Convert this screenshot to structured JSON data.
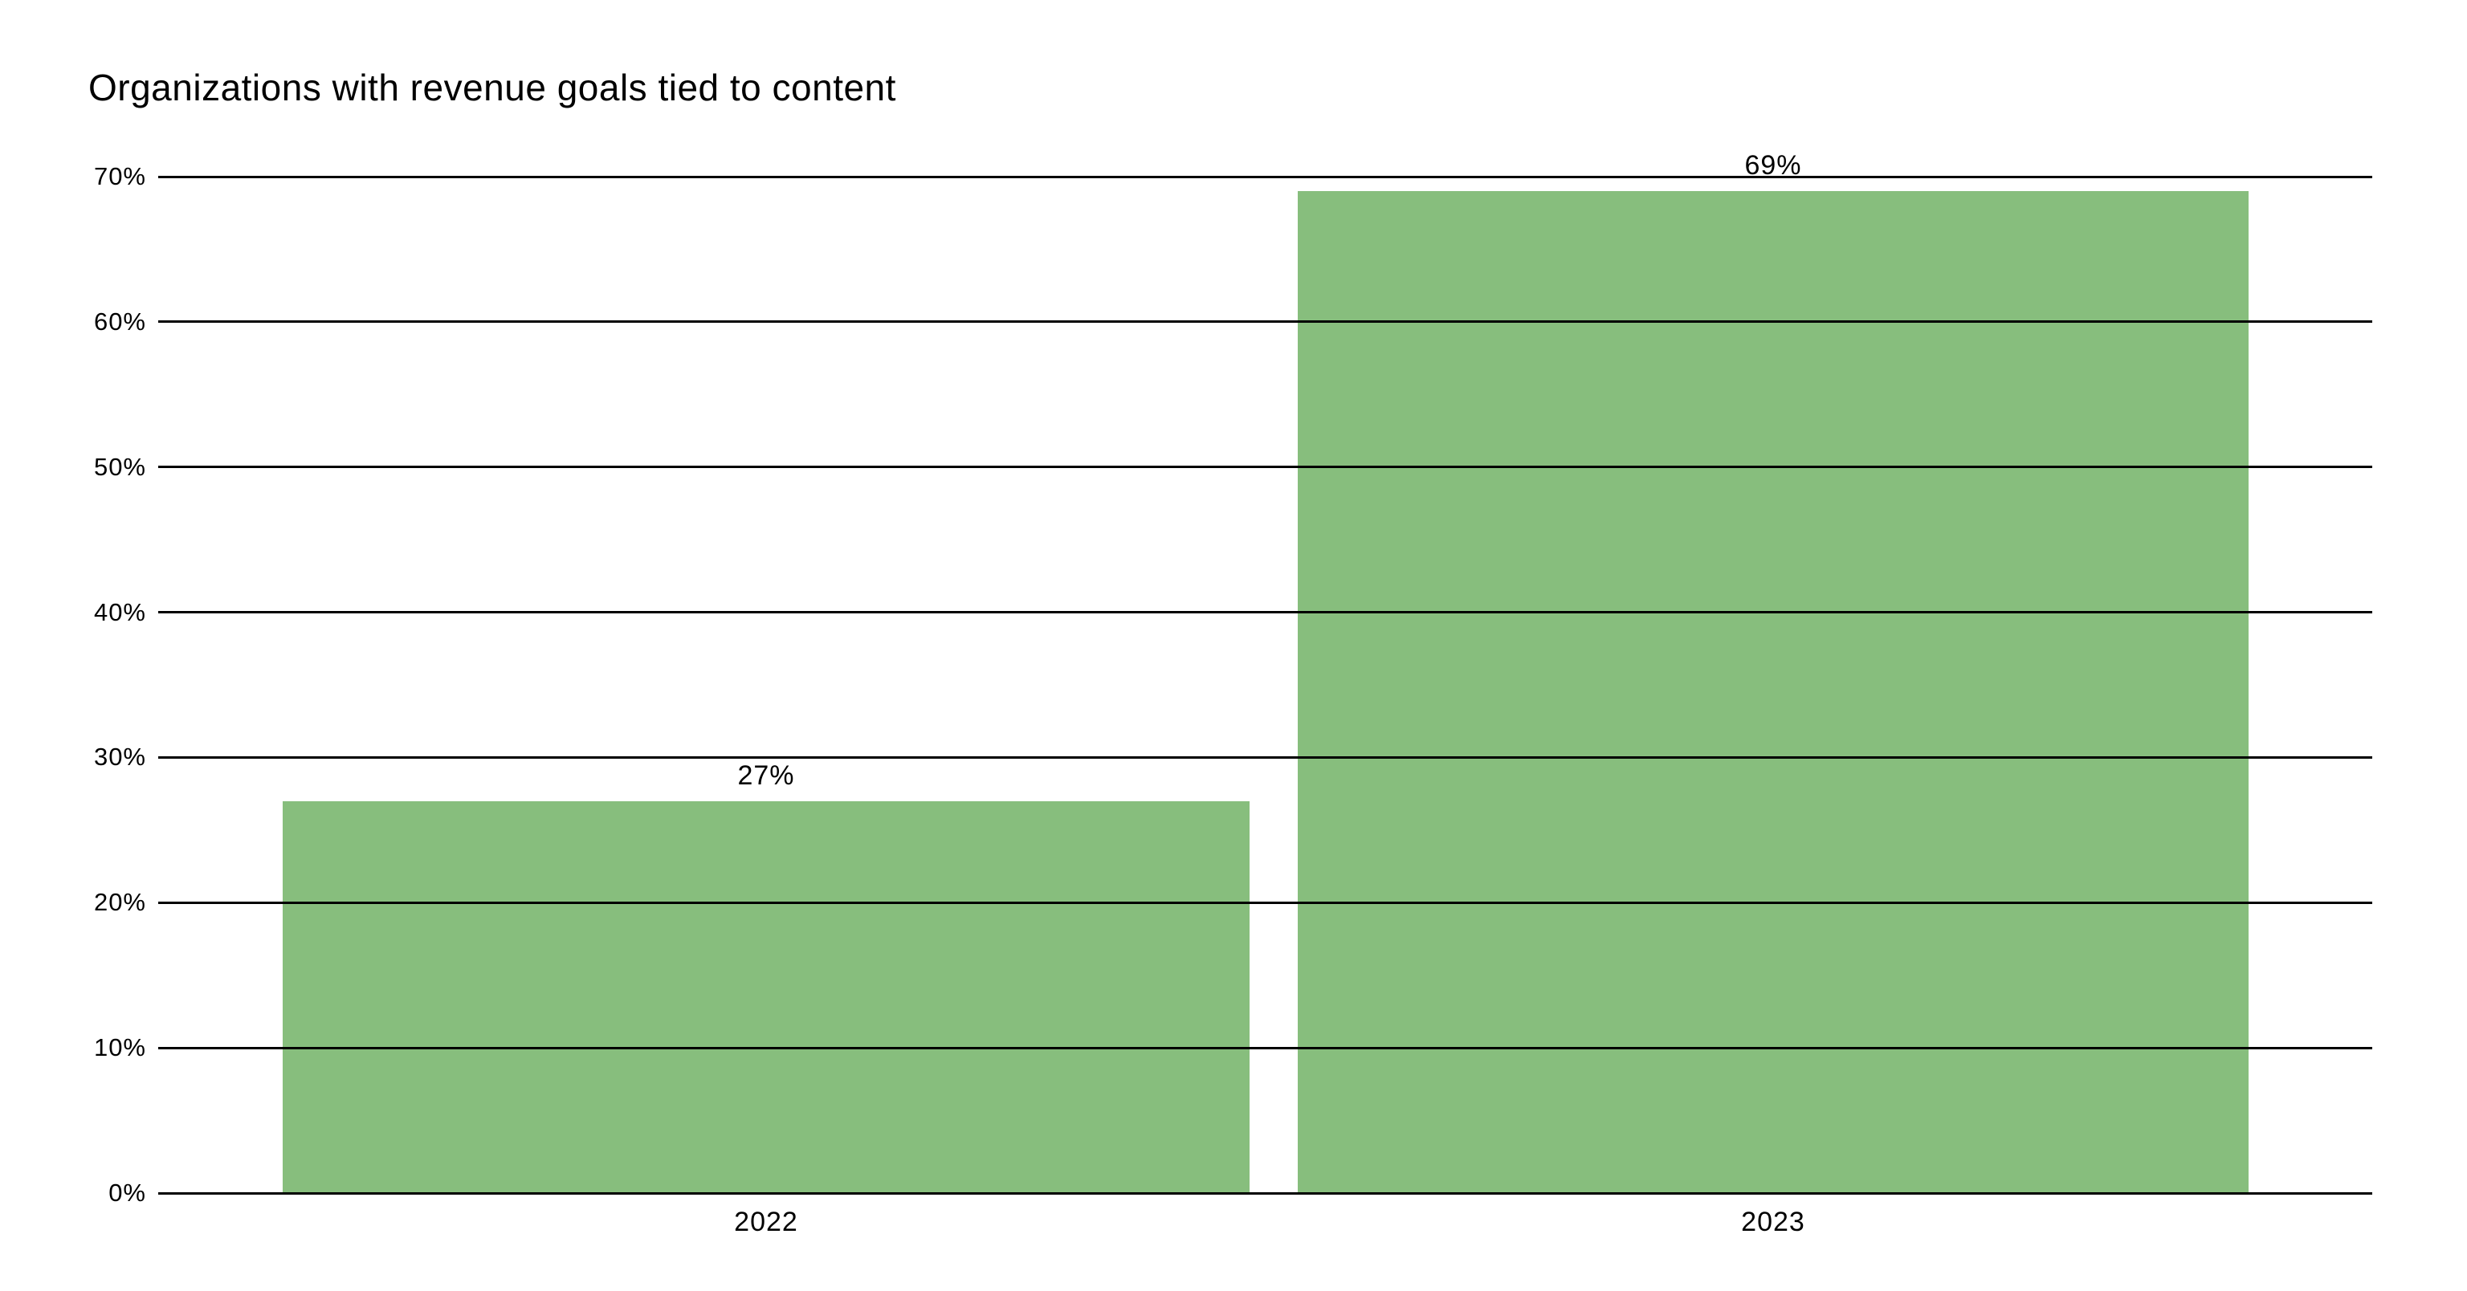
{
  "chart_data": {
    "type": "bar",
    "title": "Organizations with revenue goals tied to content",
    "categories": [
      "2022",
      "2023"
    ],
    "values": [
      27,
      69
    ],
    "value_labels": [
      "27%",
      "69%"
    ],
    "series": [
      {
        "name": "Organizations with revenue goals tied to content",
        "values": [
          27,
          69
        ]
      }
    ],
    "xlabel": "",
    "ylabel": "",
    "ylim": [
      0,
      70
    ],
    "yticks": [
      0,
      10,
      20,
      30,
      40,
      50,
      60,
      70
    ],
    "ytick_labels": [
      "0%",
      "10%",
      "20%",
      "30%",
      "40%",
      "50%",
      "60%",
      "70%"
    ],
    "grid": true,
    "legend": false,
    "bar_color": "#87BE7D",
    "grid_color": "#000000",
    "text_color": "#000000",
    "background_color": "#ffffff"
  }
}
